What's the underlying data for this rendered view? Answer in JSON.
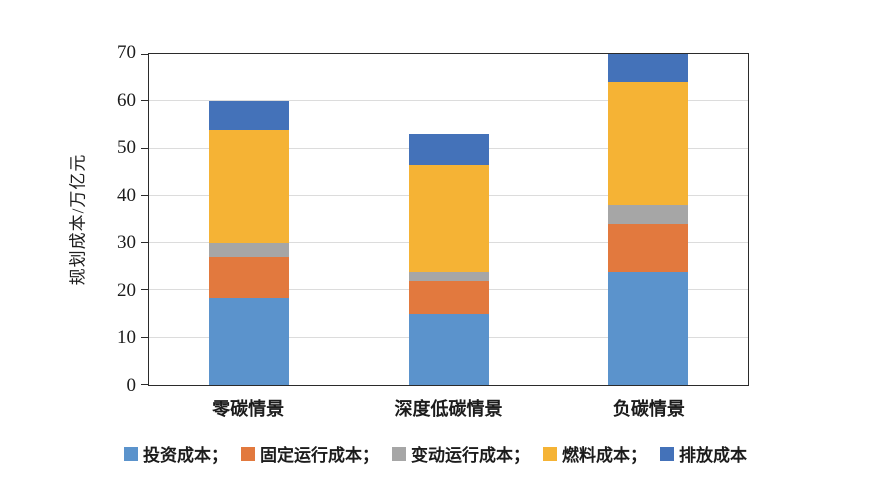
{
  "chart_data": {
    "type": "bar",
    "stacked": true,
    "title": "",
    "xlabel": "",
    "ylabel": "规划成本/万亿元",
    "ylim": [
      0,
      70
    ],
    "yticks": [
      0,
      10,
      20,
      30,
      40,
      50,
      60,
      70
    ],
    "grid": true,
    "categories": [
      "零碳情景",
      "深度低碳情景",
      "负碳情景"
    ],
    "series": [
      {
        "name": "投资成本",
        "color": "#5B93CC",
        "values": [
          18.5,
          15,
          24
        ]
      },
      {
        "name": "固定运行成本",
        "color": "#E2793E",
        "values": [
          8.5,
          7,
          10
        ]
      },
      {
        "name": "变动运行成本",
        "color": "#A6A6A6",
        "values": [
          3,
          2,
          4
        ]
      },
      {
        "name": "燃料成本",
        "color": "#F5B335",
        "values": [
          24,
          22.5,
          26
        ]
      },
      {
        "name": "排放成本",
        "color": "#4472B9",
        "values": [
          6,
          6.5,
          6
        ]
      }
    ],
    "totals": [
      60,
      53,
      70
    ],
    "legend": {
      "position": "bottom",
      "items": [
        {
          "label": "投资成本；"
        },
        {
          "label": "固定运行成本；"
        },
        {
          "label": "变动运行成本；"
        },
        {
          "label": "燃料成本；"
        },
        {
          "label": "排放成本"
        }
      ]
    },
    "colors": {
      "axis": "#2b2b2b",
      "gridline": "#dcdcdc",
      "background": "#ffffff"
    }
  }
}
